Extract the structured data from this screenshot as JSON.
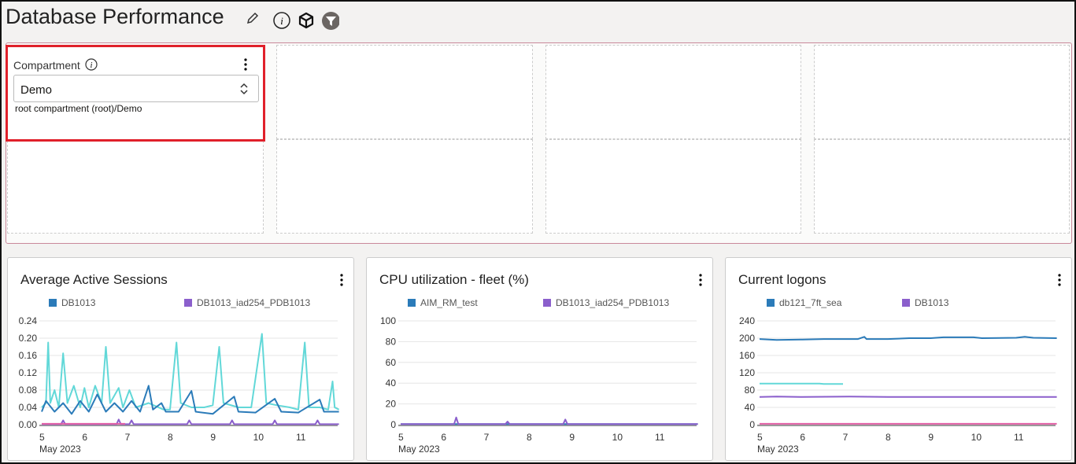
{
  "header": {
    "title": "Database Performance",
    "icons": [
      "pencil-icon",
      "info-icon",
      "cube-icon",
      "filter-icon"
    ]
  },
  "compartment": {
    "label": "Compartment",
    "value": "Demo",
    "path": "root compartment (root)/Demo"
  },
  "colors": {
    "blue": "#2b7bb9",
    "teal": "#62d8d8",
    "purple": "#8b5fcc",
    "pink": "#e25ea5",
    "accent_red": "#e0202a"
  },
  "chart_data": [
    {
      "type": "line",
      "title": "Average Active Sessions",
      "x_unit": "day of May 2023",
      "xticks": [
        5,
        6,
        7,
        8,
        9,
        10,
        11
      ],
      "xsub": "May 2023",
      "ylim": [
        0,
        0.24
      ],
      "yticks": [
        "0.00",
        "0.04",
        "0.08",
        "0.12",
        "0.16",
        "0.20",
        "0.24"
      ],
      "grid": true,
      "legend": "top",
      "legend_items": [
        {
          "name": "DB1013",
          "color": "#2b7bb9"
        },
        {
          "name": "DB1013_iad254_PDB1013",
          "color": "#8b5fcc"
        }
      ],
      "series": [
        {
          "color": "#62d8d8",
          "points": [
            [
              5,
              0.04
            ],
            [
              5.1,
              0.05
            ],
            [
              5.15,
              0.19
            ],
            [
              5.2,
              0.05
            ],
            [
              5.3,
              0.08
            ],
            [
              5.4,
              0.04
            ],
            [
              5.5,
              0.165
            ],
            [
              5.6,
              0.05
            ],
            [
              5.75,
              0.09
            ],
            [
              5.9,
              0.04
            ],
            [
              6.0,
              0.085
            ],
            [
              6.1,
              0.04
            ],
            [
              6.25,
              0.09
            ],
            [
              6.4,
              0.05
            ],
            [
              6.5,
              0.18
            ],
            [
              6.6,
              0.05
            ],
            [
              6.8,
              0.085
            ],
            [
              6.9,
              0.04
            ],
            [
              7.05,
              0.08
            ],
            [
              7.2,
              0.04
            ],
            [
              7.5,
              0.05
            ],
            [
              7.85,
              0.035
            ],
            [
              8.0,
              0.035
            ],
            [
              8.15,
              0.19
            ],
            [
              8.25,
              0.05
            ],
            [
              8.5,
              0.04
            ],
            [
              8.8,
              0.04
            ],
            [
              9.0,
              0.045
            ],
            [
              9.15,
              0.18
            ],
            [
              9.25,
              0.05
            ],
            [
              9.6,
              0.04
            ],
            [
              9.9,
              0.04
            ],
            [
              10.15,
              0.21
            ],
            [
              10.25,
              0.05
            ],
            [
              10.5,
              0.045
            ],
            [
              10.8,
              0.04
            ],
            [
              11.0,
              0.035
            ],
            [
              11.15,
              0.19
            ],
            [
              11.25,
              0.04
            ],
            [
              11.5,
              0.04
            ],
            [
              11.7,
              0.035
            ],
            [
              11.8,
              0.1
            ],
            [
              11.85,
              0.04
            ],
            [
              11.95,
              0.035
            ]
          ]
        },
        {
          "name": "DB1013",
          "color": "#2b7bb9",
          "points": [
            [
              5,
              0.03
            ],
            [
              5.1,
              0.055
            ],
            [
              5.3,
              0.03
            ],
            [
              5.5,
              0.05
            ],
            [
              5.7,
              0.025
            ],
            [
              5.9,
              0.055
            ],
            [
              6.1,
              0.03
            ],
            [
              6.3,
              0.07
            ],
            [
              6.5,
              0.03
            ],
            [
              6.7,
              0.05
            ],
            [
              6.9,
              0.03
            ],
            [
              7.1,
              0.055
            ],
            [
              7.3,
              0.03
            ],
            [
              7.5,
              0.09
            ],
            [
              7.6,
              0.035
            ],
            [
              7.8,
              0.05
            ],
            [
              7.9,
              0.03
            ],
            [
              8.2,
              0.03
            ],
            [
              8.5,
              0.078
            ],
            [
              8.6,
              0.03
            ],
            [
              9.0,
              0.025
            ],
            [
              9.5,
              0.065
            ],
            [
              9.6,
              0.03
            ],
            [
              10.0,
              0.028
            ],
            [
              10.45,
              0.06
            ],
            [
              10.6,
              0.03
            ],
            [
              11.0,
              0.028
            ],
            [
              11.5,
              0.058
            ],
            [
              11.6,
              0.03
            ],
            [
              11.95,
              0.03
            ]
          ]
        },
        {
          "name": "DB1013_iad254_PDB1013",
          "color": "#8b5fcc",
          "points": [
            [
              5,
              0.001
            ],
            [
              5.45,
              0.001
            ],
            [
              5.5,
              0.01
            ],
            [
              5.55,
              0.001
            ],
            [
              6.75,
              0.001
            ],
            [
              6.8,
              0.012
            ],
            [
              6.85,
              0.001
            ],
            [
              7.05,
              0.001
            ],
            [
              7.1,
              0.01
            ],
            [
              7.15,
              0.001
            ],
            [
              8.4,
              0.001
            ],
            [
              8.45,
              0.01
            ],
            [
              8.5,
              0.001
            ],
            [
              9.4,
              0.001
            ],
            [
              9.45,
              0.01
            ],
            [
              9.5,
              0.001
            ],
            [
              10.4,
              0.001
            ],
            [
              10.45,
              0.01
            ],
            [
              10.5,
              0.001
            ],
            [
              11.4,
              0.001
            ],
            [
              11.45,
              0.01
            ],
            [
              11.5,
              0.001
            ],
            [
              11.95,
              0.001
            ]
          ]
        },
        {
          "color": "#e25ea5",
          "points": [
            [
              5,
              0.002
            ],
            [
              6.95,
              0.002
            ]
          ]
        }
      ]
    },
    {
      "type": "line",
      "title": "CPU utilization - fleet (%)",
      "x_unit": "day of May 2023",
      "xticks": [
        5,
        6,
        7,
        8,
        9,
        10,
        11
      ],
      "xsub": "May 2023",
      "ylim": [
        0,
        100
      ],
      "yticks": [
        "0",
        "20",
        "40",
        "60",
        "80",
        "100"
      ],
      "grid": true,
      "legend": "top",
      "legend_items": [
        {
          "name": "AIM_RM_test",
          "color": "#2b7bb9"
        },
        {
          "name": "DB1013_iad254_PDB1013",
          "color": "#8b5fcc"
        }
      ],
      "series": [
        {
          "name": "AIM_RM_test",
          "color": "#2b7bb9",
          "points": [
            [
              5,
              0.5
            ],
            [
              11.95,
              0.5
            ]
          ]
        },
        {
          "name": "DB1013_iad254_PDB1013",
          "color": "#8b5fcc",
          "points": [
            [
              5,
              0.5
            ],
            [
              6.25,
              0.5
            ],
            [
              6.3,
              7
            ],
            [
              6.35,
              0.5
            ],
            [
              7.45,
              0.5
            ],
            [
              7.5,
              3
            ],
            [
              7.55,
              0.5
            ],
            [
              8.8,
              0.5
            ],
            [
              8.85,
              5
            ],
            [
              8.9,
              0.5
            ],
            [
              11.95,
              0.5
            ]
          ]
        }
      ]
    },
    {
      "type": "line",
      "title": "Current logons",
      "x_unit": "day of May 2023",
      "xticks": [
        5,
        6,
        7,
        8,
        9,
        10,
        11
      ],
      "xsub": "May 2023",
      "ylim": [
        0,
        240
      ],
      "yticks": [
        "0",
        "40",
        "80",
        "120",
        "160",
        "200",
        "240"
      ],
      "grid": true,
      "legend": "top",
      "legend_items": [
        {
          "name": "db121_7ft_sea",
          "color": "#2b7bb9"
        },
        {
          "name": "DB1013",
          "color": "#8b5fcc"
        }
      ],
      "series": [
        {
          "name": "db121_7ft_sea",
          "color": "#2b7bb9",
          "points": [
            [
              5,
              198
            ],
            [
              5.4,
              196
            ],
            [
              6,
              197
            ],
            [
              6.5,
              198
            ],
            [
              7.3,
              198
            ],
            [
              7.45,
              203
            ],
            [
              7.5,
              198
            ],
            [
              8,
              198
            ],
            [
              8.5,
              200
            ],
            [
              9,
              200
            ],
            [
              9.3,
              202
            ],
            [
              10,
              202
            ],
            [
              10.2,
              200
            ],
            [
              11,
              201
            ],
            [
              11.2,
              203
            ],
            [
              11.4,
              201
            ],
            [
              11.95,
              200
            ]
          ]
        },
        {
          "color": "#62d8d8",
          "points": [
            [
              5,
              95
            ],
            [
              6.4,
              95
            ],
            [
              6.5,
              94
            ],
            [
              6.95,
              94
            ]
          ]
        },
        {
          "name": "DB1013",
          "color": "#8b5fcc",
          "points": [
            [
              5,
              64
            ],
            [
              5.4,
              65
            ],
            [
              6,
              64
            ],
            [
              7.1,
              65
            ],
            [
              8,
              64
            ],
            [
              11.95,
              64
            ]
          ]
        },
        {
          "color": "#e25ea5",
          "points": [
            [
              5,
              2
            ],
            [
              11.95,
              2
            ]
          ]
        }
      ]
    }
  ]
}
